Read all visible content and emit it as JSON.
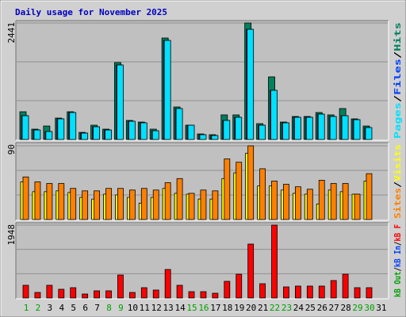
{
  "chart_data": [
    {
      "type": "bar",
      "title": "Daily usage for November 2025",
      "categories": [
        1,
        2,
        3,
        4,
        5,
        6,
        7,
        8,
        9,
        10,
        11,
        12,
        13,
        14,
        15,
        16,
        17,
        18,
        19,
        20,
        21,
        22,
        23,
        24,
        25,
        26,
        27,
        28,
        29,
        30,
        31
      ],
      "weekend_days": [
        1,
        2,
        8,
        9,
        15,
        16,
        22,
        23,
        29,
        30
      ],
      "weekend_color": "#00a000",
      "weekday_color": "#000000",
      "separator": "/",
      "ylim": [
        0,
        2441
      ],
      "yticks": [
        2441
      ],
      "series": [
        {
          "name": "Hits",
          "color": "#00805c",
          "values": [
            581,
            216,
            282,
            448,
            581,
            149,
            299,
            216,
            1611,
            399,
            365,
            216,
            2126,
            681,
            299,
            116,
            100,
            515,
            515,
            2441,
            332,
            1312,
            365,
            482,
            482,
            565,
            515,
            648,
            432,
            282,
            null
          ]
        },
        {
          "name": "Files",
          "color": "#0040ff",
          "values": [
            498,
            199,
            166,
            432,
            565,
            133,
            266,
            199,
            1561,
            382,
            349,
            183,
            2076,
            648,
            299,
            100,
            83,
            399,
            465,
            2308,
            299,
            1030,
            349,
            465,
            465,
            531,
            482,
            498,
            415,
            249,
            null
          ]
        },
        {
          "name": "Pages",
          "color": "#00e0ff",
          "values": [
            498,
            199,
            166,
            432,
            565,
            133,
            266,
            199,
            1561,
            382,
            349,
            183,
            2076,
            648,
            299,
            100,
            83,
            399,
            465,
            2308,
            299,
            1030,
            349,
            465,
            465,
            531,
            482,
            498,
            415,
            249,
            null
          ]
        }
      ]
    },
    {
      "type": "bar",
      "ylim": [
        0,
        90
      ],
      "yticks": [
        90
      ],
      "separator": "/",
      "series": [
        {
          "name": "Visits",
          "color": "#ffff00",
          "values": [
            46,
            34,
            34,
            35,
            33,
            27,
            25,
            31,
            30,
            27,
            20,
            27,
            38,
            32,
            31,
            25,
            25,
            50,
            57,
            81,
            41,
            41,
            36,
            32,
            31,
            19,
            36,
            34,
            31,
            47,
            null
          ]
        },
        {
          "name": "Sites",
          "color": "#ff8000",
          "values": [
            52,
            46,
            44,
            44,
            38,
            35,
            35,
            38,
            38,
            36,
            38,
            36,
            45,
            50,
            32,
            36,
            35,
            74,
            70,
            90,
            62,
            47,
            43,
            40,
            37,
            48,
            44,
            44,
            31,
            56,
            null
          ]
        }
      ]
    },
    {
      "type": "bar",
      "ylim": [
        0,
        1948
      ],
      "yticks": [
        1948
      ],
      "separator": "/",
      "series": [
        {
          "name": "kB F",
          "color": "#ff0000",
          "values": [
            339,
            148,
            339,
            233,
            275,
            106,
            191,
            191,
            614,
            148,
            275,
            212,
            762,
            339,
            169,
            169,
            127,
            445,
            635,
            1440,
            381,
            1948,
            296,
            318,
            318,
            318,
            466,
            635,
            275,
            275,
            null
          ]
        },
        {
          "name": "kB In",
          "color": "#0040ff"
        },
        {
          "name": "kB Out",
          "color": "#00a000"
        }
      ]
    }
  ]
}
